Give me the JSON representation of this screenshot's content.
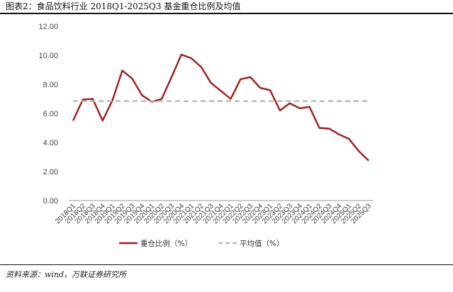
{
  "figure": {
    "title": "图表2：食品饮料行业 2018Q1-2025Q3 基金重仓比例及均值",
    "source": "资料来源：wind，万联证券研究所"
  },
  "chart_data": {
    "type": "line",
    "title": "图表2：食品饮料行业 2018Q1-2025Q3 基金重仓比例及均值",
    "xlabel": "",
    "ylabel": "",
    "ylim": [
      0,
      12
    ],
    "y_ticks": [
      "0.00",
      "2.00",
      "4.00",
      "6.00",
      "8.00",
      "10.00",
      "12.00"
    ],
    "grid": false,
    "legend_position": "bottom",
    "categories": [
      "2018Q1",
      "2018Q2",
      "2018Q3",
      "2018Q4",
      "2019Q1",
      "2019Q2",
      "2019Q3",
      "2019Q4",
      "2020Q1",
      "2020Q2",
      "2020Q3",
      "2020Q4",
      "2021Q1",
      "2021Q2",
      "2021Q3",
      "2021Q4",
      "2022Q1",
      "2022Q2",
      "2022Q3",
      "2022Q4",
      "2023Q1",
      "2023Q2",
      "2023Q3",
      "2023Q4",
      "2024Q1",
      "2024Q2",
      "2024Q3",
      "2024Q4",
      "2025Q1",
      "2025Q2",
      "2025Q3"
    ],
    "series": [
      {
        "name": "重仓比例（%）",
        "color": "#a31a1a",
        "style": "solid",
        "values": [
          5.5,
          6.95,
          7.0,
          5.5,
          6.9,
          8.95,
          8.4,
          7.25,
          6.8,
          7.0,
          8.5,
          10.05,
          9.8,
          9.2,
          8.1,
          7.55,
          7.0,
          8.35,
          8.5,
          7.75,
          7.6,
          6.2,
          6.7,
          6.35,
          6.45,
          5.0,
          4.95,
          4.55,
          4.25,
          3.4,
          2.75
        ]
      },
      {
        "name": "平均值（%）",
        "color": "#b3b3b3",
        "style": "dashed",
        "values": [
          6.85,
          6.85,
          6.85,
          6.85,
          6.85,
          6.85,
          6.85,
          6.85,
          6.85,
          6.85,
          6.85,
          6.85,
          6.85,
          6.85,
          6.85,
          6.85,
          6.85,
          6.85,
          6.85,
          6.85,
          6.85,
          6.85,
          6.85,
          6.85,
          6.85,
          6.85,
          6.85,
          6.85,
          6.85,
          6.85,
          6.85
        ]
      }
    ]
  }
}
